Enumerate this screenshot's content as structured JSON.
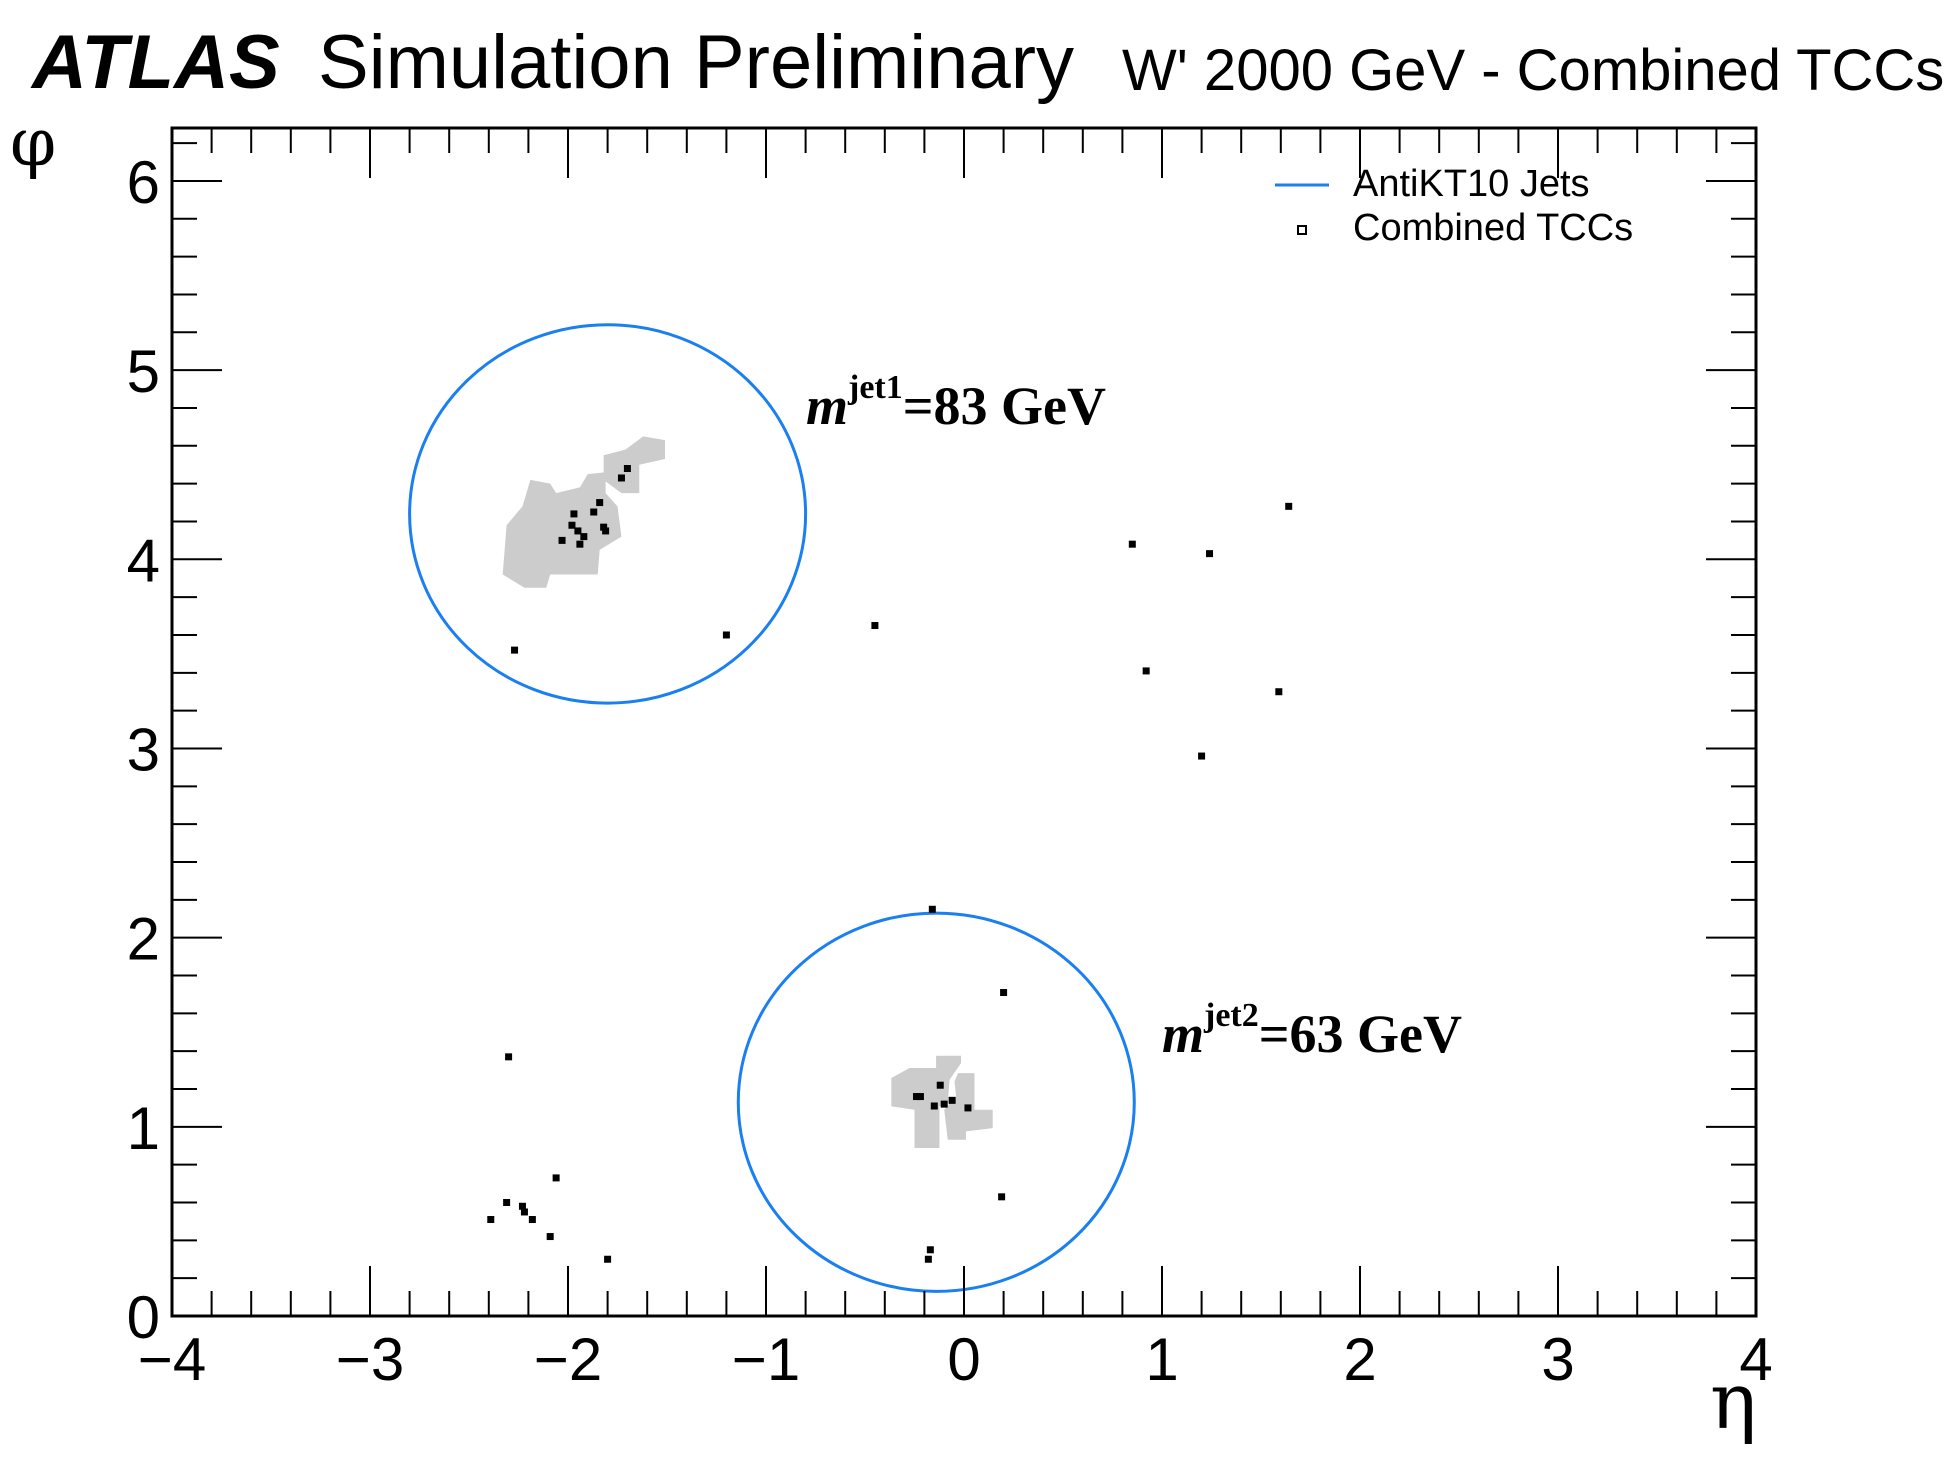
{
  "header": {
    "experiment": "ATLAS",
    "status": "Simulation Preliminary",
    "sample": "W' 2000 GeV - Combined TCCs"
  },
  "chart_data": {
    "type": "scatter",
    "xlabel": "η",
    "ylabel": "φ",
    "xlim": [
      -4,
      4
    ],
    "ylim": [
      0,
      6.28
    ],
    "xticks": [
      "−4",
      "−3",
      "−2",
      "−1",
      "0",
      "1",
      "2",
      "3",
      "4"
    ],
    "yticks": [
      "0",
      "1",
      "2",
      "3",
      "4",
      "5",
      "6"
    ],
    "grid": false,
    "legend_position": "top-right",
    "legend": [
      {
        "label": "AntiKT10 Jets",
        "marker": "line",
        "color": "#1a7ff0"
      },
      {
        "label": "Combined TCCs",
        "marker": "open-square",
        "color": "#000000"
      }
    ],
    "jets": [
      {
        "eta": -1.8,
        "phi": 4.24,
        "radius": 1.0,
        "mass_label": {
          "m": "m",
          "sup": "jet1",
          "value": "=83 GeV"
        }
      },
      {
        "eta": -0.14,
        "phi": 1.13,
        "radius": 1.0,
        "mass_label": {
          "m": "m",
          "sup": "jet2",
          "value": "=63 GeV"
        }
      }
    ],
    "cluster_regions_color": "#cccccc",
    "cluster_regions": [
      [
        [
          -2.22,
          3.85
        ],
        [
          -2.33,
          3.92
        ],
        [
          -2.31,
          4.18
        ],
        [
          -2.23,
          4.28
        ],
        [
          -2.19,
          4.42
        ],
        [
          -2.09,
          4.4
        ],
        [
          -2.06,
          4.35
        ],
        [
          -1.94,
          4.38
        ],
        [
          -1.9,
          4.45
        ],
        [
          -1.81,
          4.46
        ],
        [
          -1.81,
          4.35
        ],
        [
          -1.75,
          4.28
        ],
        [
          -1.73,
          4.12
        ],
        [
          -1.84,
          4.05
        ],
        [
          -1.85,
          3.92
        ],
        [
          -2.09,
          3.92
        ],
        [
          -2.11,
          3.85
        ]
      ],
      [
        [
          -1.82,
          4.55
        ],
        [
          -1.71,
          4.58
        ],
        [
          -1.62,
          4.65
        ],
        [
          -1.51,
          4.63
        ],
        [
          -1.51,
          4.53
        ],
        [
          -1.64,
          4.5
        ],
        [
          -1.64,
          4.35
        ],
        [
          -1.73,
          4.35
        ],
        [
          -1.82,
          4.42
        ]
      ],
      [
        [
          -0.367,
          1.258
        ],
        [
          -0.275,
          1.311
        ],
        [
          -0.141,
          1.311
        ],
        [
          -0.141,
          1.376
        ],
        [
          -0.015,
          1.376
        ],
        [
          -0.015,
          1.337
        ],
        [
          -0.073,
          1.249
        ],
        [
          -0.082,
          1.126
        ],
        [
          -0.124,
          1.108
        ],
        [
          -0.124,
          0.888
        ],
        [
          -0.25,
          0.888
        ],
        [
          -0.25,
          1.09
        ],
        [
          -0.367,
          1.108
        ]
      ],
      [
        [
          -0.03,
          1.284
        ],
        [
          0.053,
          1.284
        ],
        [
          0.053,
          1.09
        ],
        [
          0.145,
          1.09
        ],
        [
          0.145,
          0.993
        ],
        [
          0.01,
          0.976
        ],
        [
          0.01,
          0.932
        ],
        [
          -0.082,
          0.932
        ],
        [
          -0.1,
          1.09
        ],
        [
          -0.04,
          1.161
        ],
        [
          -0.048,
          1.24
        ]
      ]
    ],
    "tccs": [
      [
        -1.7,
        4.48
      ],
      [
        -1.73,
        4.43
      ],
      [
        -1.84,
        4.3
      ],
      [
        -1.87,
        4.25
      ],
      [
        -1.97,
        4.24
      ],
      [
        -1.98,
        4.18
      ],
      [
        -1.95,
        4.15
      ],
      [
        -1.82,
        4.17
      ],
      [
        -1.81,
        4.15
      ],
      [
        -2.03,
        4.1
      ],
      [
        -1.92,
        4.12
      ],
      [
        -1.94,
        4.08
      ],
      [
        -2.27,
        3.52
      ],
      [
        -1.2,
        3.6
      ],
      [
        -0.45,
        3.65
      ],
      [
        0.85,
        4.08
      ],
      [
        1.24,
        4.03
      ],
      [
        1.64,
        4.28
      ],
      [
        0.92,
        3.41
      ],
      [
        1.59,
        3.3
      ],
      [
        1.2,
        2.96
      ],
      [
        -0.16,
        2.15
      ],
      [
        0.2,
        1.71
      ],
      [
        -2.3,
        1.37
      ],
      [
        -0.24,
        1.16
      ],
      [
        -0.22,
        1.16
      ],
      [
        -0.12,
        1.22
      ],
      [
        -0.15,
        1.11
      ],
      [
        -0.1,
        1.12
      ],
      [
        -0.06,
        1.14
      ],
      [
        0.02,
        1.1
      ],
      [
        0.19,
        0.63
      ],
      [
        -0.17,
        0.35
      ],
      [
        -0.18,
        0.3
      ],
      [
        -2.06,
        0.73
      ],
      [
        -2.31,
        0.6
      ],
      [
        -2.23,
        0.58
      ],
      [
        -2.22,
        0.55
      ],
      [
        -2.18,
        0.51
      ],
      [
        -2.39,
        0.51
      ],
      [
        -2.09,
        0.42
      ],
      [
        -1.8,
        0.3
      ]
    ]
  }
}
